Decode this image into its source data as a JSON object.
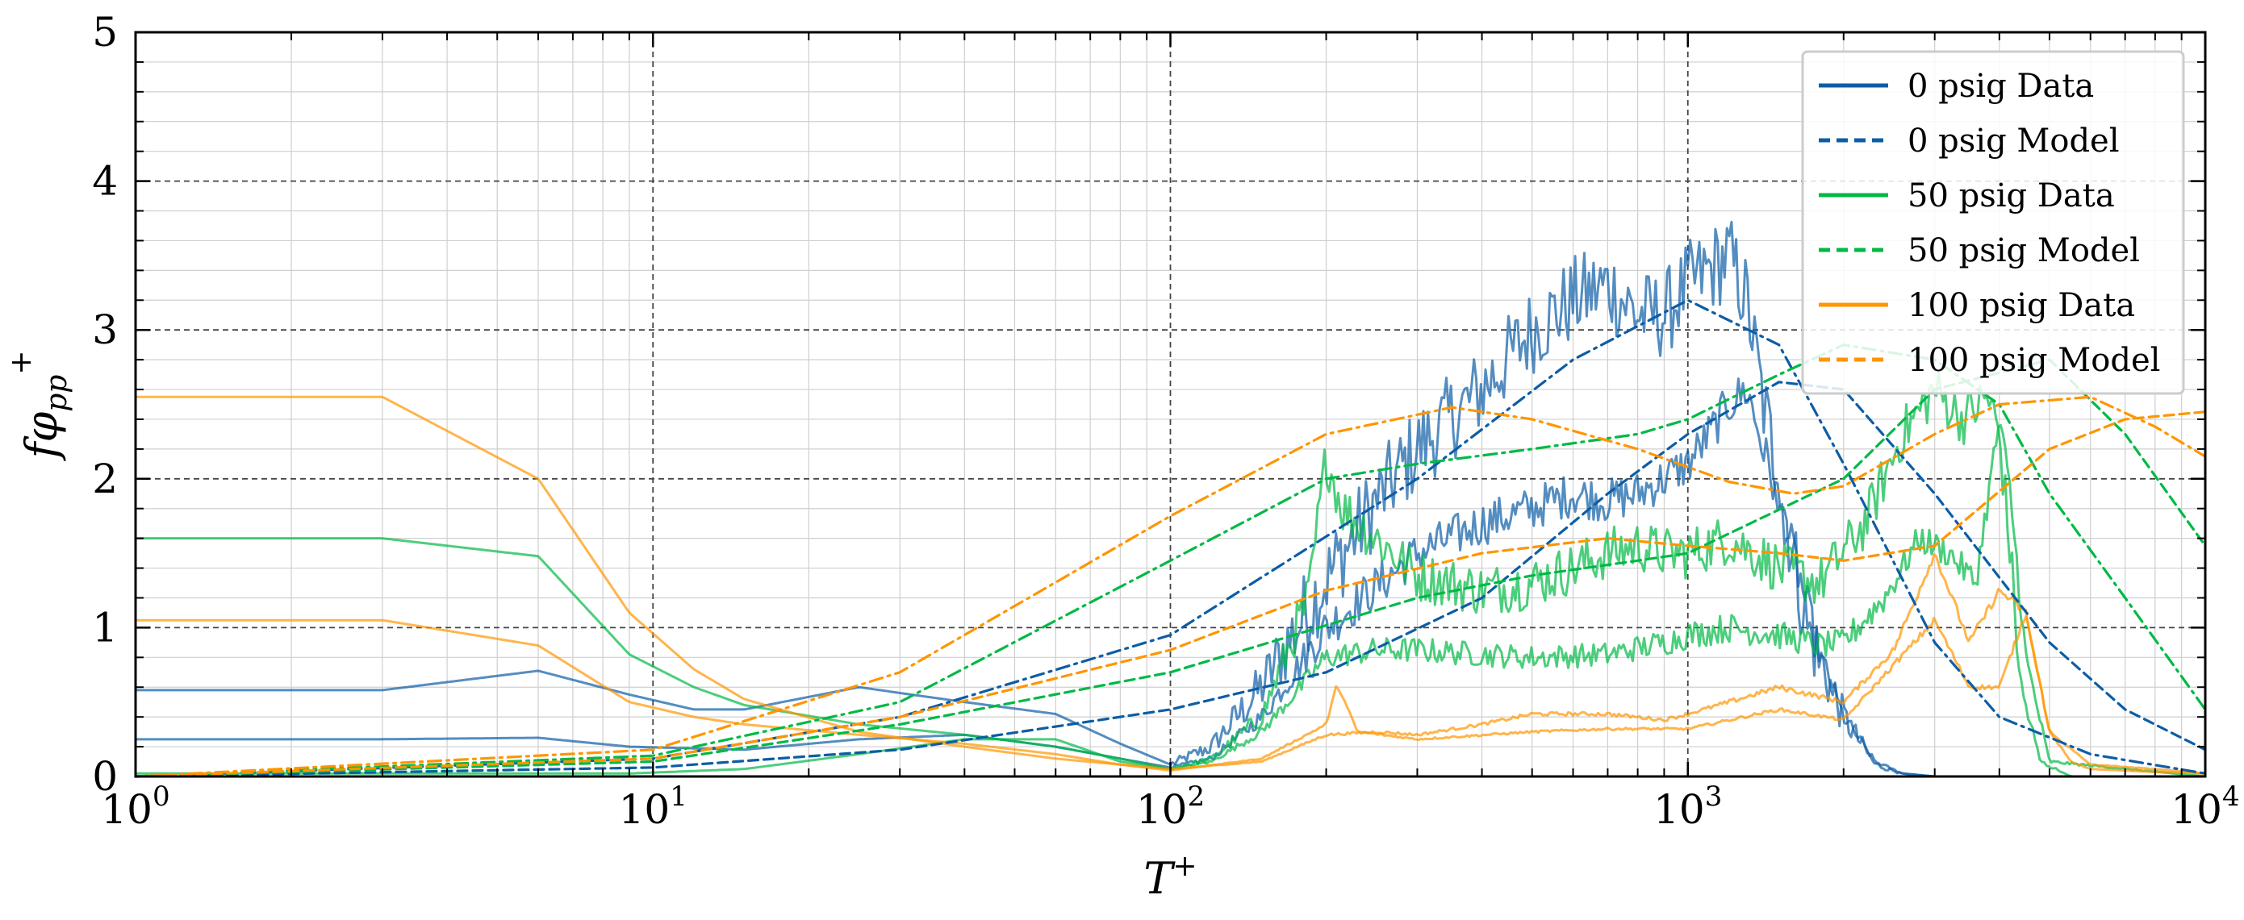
{
  "chart_data": {
    "type": "line",
    "title": "",
    "xlabel_base": "T",
    "xlabel_sup": "+",
    "ylabel": "fφ",
    "ylabel_sub": "pp",
    "ylabel_sup": "+",
    "x_scale": "log",
    "xlim": [
      1,
      10000
    ],
    "ylim": [
      0,
      5
    ],
    "y_ticks": [
      "0",
      "1",
      "2",
      "3",
      "4",
      "5"
    ],
    "x_ticks": [
      {
        "base": "10",
        "exp": "0",
        "value": 1
      },
      {
        "base": "10",
        "exp": "1",
        "value": 10
      },
      {
        "base": "10",
        "exp": "2",
        "value": 100
      },
      {
        "base": "10",
        "exp": "3",
        "value": 1000
      },
      {
        "base": "10",
        "exp": "4",
        "value": 10000
      }
    ],
    "grid": true,
    "legend_position": "top-right",
    "legend": [
      {
        "label": "0 psig Data",
        "color": "#0C5DA5",
        "style": "solid"
      },
      {
        "label": "0 psig Model",
        "color": "#0C5DA5",
        "style": "dashed"
      },
      {
        "label": "50 psig Data",
        "color": "#00B945",
        "style": "solid"
      },
      {
        "label": "50 psig Model",
        "color": "#00B945",
        "style": "dashed"
      },
      {
        "label": "100 psig Data",
        "color": "#FF9500",
        "style": "solid"
      },
      {
        "label": "100 psig Model",
        "color": "#FF9500",
        "style": "dashed"
      }
    ],
    "series": [
      {
        "color": "#0C5DA5",
        "style": "solid",
        "alpha": 0.7,
        "noise": 0.6,
        "x": [
          1,
          3,
          6,
          9,
          12,
          15,
          25,
          40,
          60,
          80,
          100,
          120,
          150,
          190,
          250,
          300,
          400,
          500,
          600,
          700,
          800,
          900,
          1000,
          1100,
          1200,
          1300,
          1400,
          1500,
          1700,
          2000,
          2300,
          2600,
          3000,
          5000,
          10000
        ],
        "y": [
          0.58,
          0.58,
          0.71,
          0.55,
          0.45,
          0.45,
          0.6,
          0.5,
          0.42,
          0.22,
          0.08,
          0.2,
          0.6,
          1.2,
          1.85,
          2.2,
          2.6,
          3.0,
          3.2,
          3.3,
          3.1,
          3.1,
          3.3,
          3.4,
          3.5,
          3.2,
          2.5,
          2.0,
          1.0,
          0.4,
          0.08,
          0.02,
          0.0,
          0.0,
          0.0
        ]
      },
      {
        "color": "#0C5DA5",
        "style": "solid",
        "alpha": 0.7,
        "noise": 0.3,
        "x": [
          1,
          3,
          6,
          9,
          15,
          25,
          40,
          60,
          80,
          100,
          120,
          150,
          200,
          300,
          400,
          500,
          600,
          700,
          800,
          900,
          1000,
          1100,
          1200,
          1300,
          1400,
          1600,
          1800,
          2000,
          2300,
          2600,
          3000,
          10000
        ],
        "y": [
          0.25,
          0.25,
          0.26,
          0.2,
          0.18,
          0.25,
          0.28,
          0.2,
          0.12,
          0.06,
          0.12,
          0.4,
          1.0,
          1.5,
          1.7,
          1.8,
          1.9,
          1.85,
          1.9,
          2.0,
          2.1,
          2.3,
          2.5,
          2.6,
          2.2,
          1.5,
          0.8,
          0.4,
          0.1,
          0.02,
          0.0,
          0.0
        ]
      },
      {
        "color": "#00B945",
        "style": "solid",
        "alpha": 0.7,
        "noise": 0.35,
        "x": [
          1,
          3,
          6,
          9,
          12,
          15,
          25,
          40,
          60,
          80,
          100,
          120,
          150,
          185,
          200,
          215,
          250,
          300,
          400,
          500,
          600,
          700,
          800,
          900,
          1000,
          1200,
          1500,
          1800,
          2200,
          2600,
          3000,
          3400,
          3800,
          4000,
          4200,
          4400,
          4800,
          5500,
          10000
        ],
        "y": [
          1.6,
          1.6,
          1.48,
          0.82,
          0.6,
          0.48,
          0.35,
          0.28,
          0.2,
          0.12,
          0.05,
          0.12,
          0.4,
          1.2,
          2.15,
          1.8,
          1.6,
          1.35,
          1.25,
          1.3,
          1.4,
          1.5,
          1.55,
          1.5,
          1.5,
          1.6,
          1.4,
          1.3,
          1.7,
          2.3,
          2.6,
          2.4,
          2.55,
          2.3,
          1.5,
          0.6,
          0.1,
          0.0,
          0.0
        ]
      },
      {
        "color": "#00B945",
        "style": "solid",
        "alpha": 0.7,
        "noise": 0.2,
        "x": [
          1,
          6,
          9,
          15,
          25,
          40,
          60,
          80,
          100,
          120,
          150,
          200,
          250,
          300,
          400,
          500,
          700,
          900,
          1000,
          1200,
          1500,
          1800,
          2000,
          2400,
          2800,
          3200,
          3600,
          4000,
          4200,
          4500,
          5000,
          10000
        ],
        "y": [
          0.02,
          0.02,
          0.02,
          0.05,
          0.15,
          0.25,
          0.25,
          0.1,
          0.05,
          0.1,
          0.3,
          0.8,
          0.85,
          0.85,
          0.82,
          0.8,
          0.82,
          0.9,
          0.95,
          1.0,
          0.95,
          0.88,
          0.9,
          1.2,
          1.6,
          1.5,
          1.3,
          2.4,
          1.9,
          0.8,
          0.1,
          0.0
        ]
      },
      {
        "color": "#FF9500",
        "style": "solid",
        "alpha": 0.7,
        "noise": 0.06,
        "x": [
          1,
          3,
          6,
          9,
          12,
          15,
          25,
          40,
          60,
          80,
          100,
          150,
          200,
          250,
          300,
          400,
          500,
          700,
          900,
          1000,
          1200,
          1500,
          2000,
          2500,
          3000,
          3500,
          4000,
          4500,
          5000,
          6000,
          8000,
          10000
        ],
        "y": [
          2.55,
          2.55,
          2.0,
          1.1,
          0.72,
          0.52,
          0.3,
          0.2,
          0.12,
          0.08,
          0.05,
          0.1,
          0.28,
          0.3,
          0.28,
          0.35,
          0.42,
          0.42,
          0.38,
          0.42,
          0.5,
          0.6,
          0.5,
          0.85,
          1.5,
          0.9,
          1.25,
          1.1,
          0.3,
          0.08,
          0.05,
          0.02
        ]
      },
      {
        "color": "#FF9500",
        "style": "solid",
        "alpha": 0.7,
        "noise": 0.05,
        "x": [
          1,
          3,
          6,
          9,
          12,
          15,
          25,
          40,
          60,
          80,
          100,
          150,
          200,
          210,
          230,
          300,
          500,
          700,
          1000,
          1500,
          2000,
          2500,
          3000,
          3500,
          4000,
          4500,
          5000,
          5500,
          6000,
          8000,
          10000
        ],
        "y": [
          1.05,
          1.05,
          0.88,
          0.5,
          0.4,
          0.35,
          0.28,
          0.22,
          0.15,
          0.08,
          0.04,
          0.12,
          0.35,
          0.62,
          0.3,
          0.25,
          0.3,
          0.32,
          0.32,
          0.45,
          0.38,
          0.75,
          1.05,
          0.6,
          0.6,
          1.1,
          0.3,
          0.1,
          0.05,
          0.03,
          0.02
        ]
      },
      {
        "color": "#0C5DA5",
        "style": "dashdot",
        "alpha": 1,
        "x": [
          1,
          10,
          30,
          100,
          300,
          600,
          1000,
          1500,
          2000,
          3000,
          4000,
          6000,
          10000
        ],
        "y": [
          0.0,
          0.12,
          0.4,
          0.95,
          2.0,
          2.8,
          3.2,
          2.9,
          2.1,
          0.9,
          0.4,
          0.15,
          0.02
        ]
      },
      {
        "color": "#0C5DA5",
        "style": "dashed",
        "alpha": 1,
        "x": [
          1,
          10,
          30,
          100,
          200,
          400,
          700,
          1000,
          1500,
          2000,
          3000,
          5000,
          7000,
          10000
        ],
        "y": [
          0.0,
          0.06,
          0.18,
          0.45,
          0.7,
          1.2,
          1.9,
          2.3,
          2.65,
          2.6,
          1.9,
          0.9,
          0.45,
          0.18
        ]
      },
      {
        "color": "#00B945",
        "style": "dashdot",
        "alpha": 1,
        "x": [
          1,
          10,
          30,
          100,
          200,
          300,
          500,
          800,
          1000,
          1500,
          2000,
          3000,
          4000,
          5000,
          7000,
          10000
        ],
        "y": [
          0.0,
          0.14,
          0.5,
          1.45,
          2.0,
          2.1,
          2.2,
          2.3,
          2.4,
          2.7,
          2.9,
          2.8,
          2.5,
          1.9,
          1.2,
          0.45
        ]
      },
      {
        "color": "#00B945",
        "style": "dashed",
        "alpha": 1,
        "x": [
          1,
          10,
          30,
          100,
          300,
          500,
          800,
          1000,
          2000,
          3000,
          5000,
          7000,
          10000
        ],
        "y": [
          0.0,
          0.1,
          0.35,
          0.7,
          1.2,
          1.35,
          1.45,
          1.5,
          2.0,
          2.6,
          2.8,
          2.3,
          1.55
        ]
      },
      {
        "color": "#FF9500",
        "style": "dashdot",
        "alpha": 1,
        "x": [
          1,
          10,
          30,
          100,
          200,
          350,
          500,
          800,
          1200,
          1600,
          2000,
          3000,
          4000,
          6000,
          8000,
          10000
        ],
        "y": [
          0.0,
          0.18,
          0.7,
          1.75,
          2.3,
          2.48,
          2.4,
          2.2,
          1.98,
          1.9,
          1.95,
          2.3,
          2.5,
          2.55,
          2.35,
          2.15
        ]
      },
      {
        "color": "#FF9500",
        "style": "dashed",
        "alpha": 1,
        "x": [
          1,
          10,
          30,
          100,
          200,
          400,
          700,
          1000,
          1500,
          2000,
          3000,
          5000,
          7000,
          10000
        ],
        "y": [
          0.0,
          0.12,
          0.4,
          0.85,
          1.25,
          1.5,
          1.6,
          1.55,
          1.5,
          1.45,
          1.55,
          2.2,
          2.4,
          2.45
        ]
      }
    ]
  }
}
